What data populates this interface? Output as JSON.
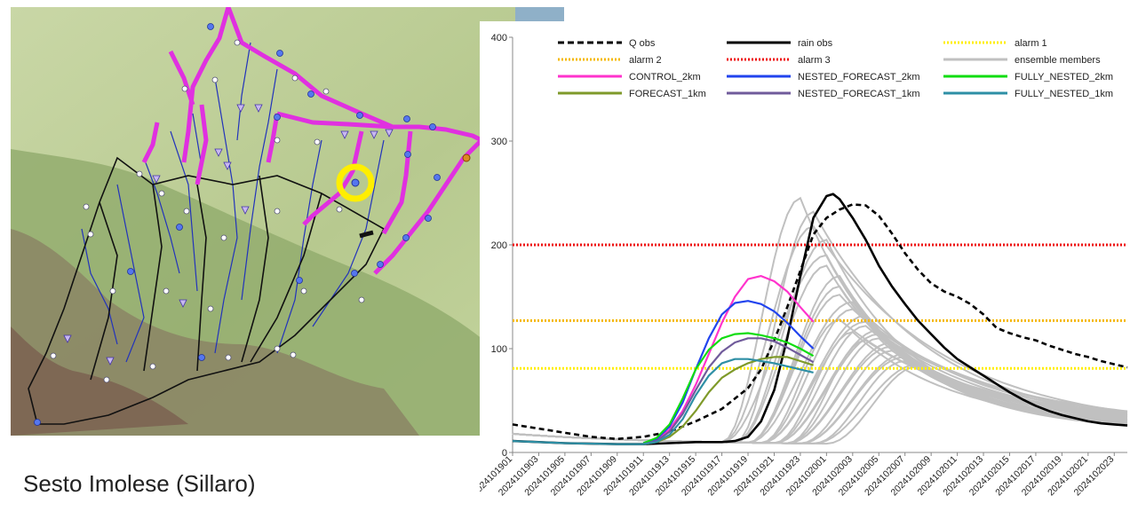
{
  "caption": "Sesto Imolese (Sillaro)",
  "map": {
    "colors": {
      "plain": "#c5d5a2",
      "hills": "#8fa66c",
      "mountains": "#7d6e5a",
      "basin_border": "#111111",
      "basin_highlight": "#e030e0",
      "rivers": "#2233bb",
      "target_marker": "#ffee00"
    },
    "icons": [
      "station-dot-icon",
      "gauge-triangle-icon",
      "forecast-point-marker-icon",
      "target-ring-icon"
    ]
  },
  "chart_data": {
    "type": "line",
    "ylim": [
      0,
      400
    ],
    "yticks": [
      0,
      100,
      200,
      300,
      400
    ],
    "x_tick_labels": [
      "2024101901",
      "2024101903",
      "2024101905",
      "2024101907",
      "2024101909",
      "2024101911",
      "2024101913",
      "2024101915",
      "2024101917",
      "2024101919",
      "2024101921",
      "2024101923",
      "2024102001",
      "2024102003",
      "2024102005",
      "2024102007",
      "2024102009",
      "2024102011",
      "2024102013",
      "2024102015",
      "2024102017",
      "2024102019",
      "2024102021",
      "2024102023"
    ],
    "x_hours_range": [
      0,
      47
    ],
    "legend_position": "top",
    "legend": [
      {
        "name": "Q obs",
        "color": "#000000",
        "dash": "dashed",
        "width": 3
      },
      {
        "name": "rain obs",
        "color": "#000000",
        "dash": "solid",
        "width": 3
      },
      {
        "name": "alarm 1",
        "color": "#ffee00",
        "dash": "dotted",
        "width": 3
      },
      {
        "name": "alarm 2",
        "color": "#f5b800",
        "dash": "dotted",
        "width": 3
      },
      {
        "name": "alarm 3",
        "color": "#ee1111",
        "dash": "dotted",
        "width": 3
      },
      {
        "name": "ensemble members",
        "color": "#c0c0c0",
        "dash": "solid",
        "width": 3
      },
      {
        "name": "CONTROL_2km",
        "color": "#ff33cc",
        "dash": "solid",
        "width": 3
      },
      {
        "name": "NESTED_FORECAST_2km",
        "color": "#2244ee",
        "dash": "solid",
        "width": 3
      },
      {
        "name": "FULLY_NESTED_2km",
        "color": "#11dd11",
        "dash": "solid",
        "width": 3
      },
      {
        "name": "FORECAST_1km",
        "color": "#7f9a2a",
        "dash": "solid",
        "width": 3
      },
      {
        "name": "NESTED_FORECAST_1km",
        "color": "#705b9b",
        "dash": "solid",
        "width": 3
      },
      {
        "name": "FULLY_NESTED_1km",
        "color": "#2e8fa5",
        "dash": "solid",
        "width": 3
      }
    ],
    "thresholds": [
      {
        "name": "alarm 1",
        "value": 81,
        "color": "#ffee00"
      },
      {
        "name": "alarm 2",
        "value": 127,
        "color": "#f5b800"
      },
      {
        "name": "alarm 3",
        "value": 200,
        "color": "#ee1111"
      }
    ],
    "series": [
      {
        "name": "Q obs",
        "color": "#000000",
        "dash": "6,4",
        "width": 2.6,
        "points": [
          [
            0,
            27
          ],
          [
            2,
            23
          ],
          [
            4,
            19
          ],
          [
            6,
            15
          ],
          [
            8,
            13
          ],
          [
            10,
            15
          ],
          [
            12,
            20
          ],
          [
            14,
            30
          ],
          [
            16,
            42
          ],
          [
            18,
            62
          ],
          [
            19,
            80
          ],
          [
            20,
            108
          ],
          [
            21,
            140
          ],
          [
            22,
            175
          ],
          [
            23,
            210
          ],
          [
            24,
            226
          ],
          [
            25,
            234
          ],
          [
            26,
            239
          ],
          [
            27,
            238
          ],
          [
            28,
            228
          ],
          [
            29,
            211
          ],
          [
            30,
            192
          ],
          [
            31,
            176
          ],
          [
            32,
            163
          ],
          [
            33,
            155
          ],
          [
            34,
            150
          ],
          [
            35,
            143
          ],
          [
            36,
            133
          ],
          [
            37,
            120
          ],
          [
            38,
            115
          ],
          [
            39,
            111
          ],
          [
            40,
            108
          ],
          [
            41,
            103
          ],
          [
            42,
            99
          ],
          [
            43,
            95
          ],
          [
            44,
            92
          ],
          [
            45,
            88
          ],
          [
            46,
            85
          ],
          [
            47,
            82
          ]
        ]
      },
      {
        "name": "rain obs",
        "color": "#000000",
        "dash": "",
        "width": 2.6,
        "points": [
          [
            0,
            11
          ],
          [
            4,
            9
          ],
          [
            8,
            8
          ],
          [
            10,
            8
          ],
          [
            12,
            9
          ],
          [
            14,
            10
          ],
          [
            16,
            10
          ],
          [
            17,
            11
          ],
          [
            18,
            15
          ],
          [
            19,
            30
          ],
          [
            20,
            60
          ],
          [
            21,
            110
          ],
          [
            22,
            170
          ],
          [
            23,
            226
          ],
          [
            24,
            247
          ],
          [
            24.5,
            249
          ],
          [
            25,
            244
          ],
          [
            26,
            226
          ],
          [
            27,
            205
          ],
          [
            28,
            180
          ],
          [
            29,
            160
          ],
          [
            30,
            143
          ],
          [
            31,
            127
          ],
          [
            32,
            114
          ],
          [
            33,
            101
          ],
          [
            34,
            90
          ],
          [
            35,
            82
          ],
          [
            36,
            74
          ],
          [
            37,
            66
          ],
          [
            38,
            58
          ],
          [
            39,
            51
          ],
          [
            40,
            45
          ],
          [
            41,
            40
          ],
          [
            42,
            36
          ],
          [
            43,
            33
          ],
          [
            44,
            30
          ],
          [
            45,
            28
          ],
          [
            46,
            27
          ],
          [
            47,
            26
          ]
        ]
      },
      {
        "name": "CONTROL_2km",
        "color": "#ff33cc",
        "dash": "",
        "width": 2.2,
        "points": [
          [
            10,
            9
          ],
          [
            11,
            12
          ],
          [
            12,
            22
          ],
          [
            13,
            40
          ],
          [
            14,
            65
          ],
          [
            15,
            95
          ],
          [
            16,
            125
          ],
          [
            17,
            150
          ],
          [
            18,
            167
          ],
          [
            19,
            170
          ],
          [
            20,
            165
          ],
          [
            21,
            155
          ],
          [
            22,
            140
          ],
          [
            23,
            126
          ]
        ]
      },
      {
        "name": "NESTED_FORECAST_2km",
        "color": "#2244ee",
        "dash": "",
        "width": 2.2,
        "points": [
          [
            10,
            9
          ],
          [
            11,
            13
          ],
          [
            12,
            25
          ],
          [
            13,
            48
          ],
          [
            14,
            80
          ],
          [
            15,
            110
          ],
          [
            16,
            133
          ],
          [
            17,
            144
          ],
          [
            18,
            146
          ],
          [
            19,
            143
          ],
          [
            20,
            136
          ],
          [
            21,
            125
          ],
          [
            22,
            112
          ],
          [
            23,
            100
          ]
        ]
      },
      {
        "name": "FULLY_NESTED_2km",
        "color": "#11dd11",
        "dash": "",
        "width": 2.2,
        "points": [
          [
            10,
            9
          ],
          [
            11,
            14
          ],
          [
            12,
            27
          ],
          [
            13,
            52
          ],
          [
            14,
            80
          ],
          [
            15,
            99
          ],
          [
            16,
            110
          ],
          [
            17,
            114
          ],
          [
            18,
            115
          ],
          [
            19,
            113
          ],
          [
            20,
            110
          ],
          [
            21,
            106
          ],
          [
            22,
            100
          ],
          [
            23,
            93
          ]
        ]
      },
      {
        "name": "FORECAST_1km",
        "color": "#7f9a2a",
        "dash": "",
        "width": 2.2,
        "points": [
          [
            10,
            8
          ],
          [
            11,
            10
          ],
          [
            12,
            15
          ],
          [
            13,
            25
          ],
          [
            14,
            40
          ],
          [
            15,
            58
          ],
          [
            16,
            72
          ],
          [
            17,
            80
          ],
          [
            18,
            86
          ],
          [
            19,
            90
          ],
          [
            20,
            92
          ],
          [
            21,
            92
          ],
          [
            22,
            88
          ],
          [
            23,
            84
          ]
        ]
      },
      {
        "name": "NESTED_FORECAST_1km",
        "color": "#705b9b",
        "dash": "",
        "width": 2.2,
        "points": [
          [
            10,
            8
          ],
          [
            11,
            11
          ],
          [
            12,
            20
          ],
          [
            13,
            37
          ],
          [
            14,
            60
          ],
          [
            15,
            82
          ],
          [
            16,
            97
          ],
          [
            17,
            106
          ],
          [
            18,
            110
          ],
          [
            19,
            110
          ],
          [
            20,
            107
          ],
          [
            21,
            101
          ],
          [
            22,
            94
          ],
          [
            23,
            87
          ]
        ]
      },
      {
        "name": "FULLY_NESTED_1km",
        "color": "#2e8fa5",
        "dash": "",
        "width": 2.2,
        "points": [
          [
            0,
            11
          ],
          [
            4,
            9
          ],
          [
            8,
            8
          ],
          [
            10,
            8
          ],
          [
            11,
            10
          ],
          [
            12,
            17
          ],
          [
            13,
            32
          ],
          [
            14,
            55
          ],
          [
            15,
            74
          ],
          [
            16,
            86
          ],
          [
            17,
            90
          ],
          [
            18,
            90
          ],
          [
            19,
            88
          ],
          [
            20,
            86
          ],
          [
            21,
            83
          ],
          [
            22,
            80
          ],
          [
            23,
            77
          ]
        ]
      }
    ],
    "ensemble": {
      "name": "ensemble members",
      "color": "#c0c0c0",
      "members": [
        {
          "start": 16,
          "peak_t": 22,
          "peak": 245
        },
        {
          "start": 17,
          "peak_t": 23,
          "peak": 232
        },
        {
          "start": 16,
          "peak_t": 23,
          "peak": 218
        },
        {
          "start": 17,
          "peak_t": 24,
          "peak": 205
        },
        {
          "start": 16,
          "peak_t": 24,
          "peak": 190
        },
        {
          "start": 17,
          "peak_t": 24,
          "peak": 180
        },
        {
          "start": 18,
          "peak_t": 25,
          "peak": 170
        },
        {
          "start": 18,
          "peak_t": 25,
          "peak": 160
        },
        {
          "start": 18,
          "peak_t": 25,
          "peak": 152
        },
        {
          "start": 18,
          "peak_t": 26,
          "peak": 145
        },
        {
          "start": 19,
          "peak_t": 26,
          "peak": 138
        },
        {
          "start": 19,
          "peak_t": 27,
          "peak": 132
        },
        {
          "start": 19,
          "peak_t": 27,
          "peak": 126
        },
        {
          "start": 20,
          "peak_t": 27,
          "peak": 122
        },
        {
          "start": 20,
          "peak_t": 28,
          "peak": 118
        },
        {
          "start": 20,
          "peak_t": 28,
          "peak": 114
        },
        {
          "start": 21,
          "peak_t": 28,
          "peak": 110
        },
        {
          "start": 21,
          "peak_t": 29,
          "peak": 106
        },
        {
          "start": 21,
          "peak_t": 29,
          "peak": 102
        },
        {
          "start": 22,
          "peak_t": 29,
          "peak": 98
        },
        {
          "start": 22,
          "peak_t": 30,
          "peak": 95
        },
        {
          "start": 22,
          "peak_t": 30,
          "peak": 92
        },
        {
          "start": 23,
          "peak_t": 30,
          "peak": 88
        },
        {
          "start": 23,
          "peak_t": 31,
          "peak": 85
        },
        {
          "start": 24,
          "peak_t": 31,
          "peak": 83
        },
        {
          "start": 19,
          "peak_t": 25,
          "peak": 128
        },
        {
          "start": 20,
          "peak_t": 26,
          "peak": 116
        },
        {
          "start": 21,
          "peak_t": 27,
          "peak": 108
        }
      ]
    }
  }
}
